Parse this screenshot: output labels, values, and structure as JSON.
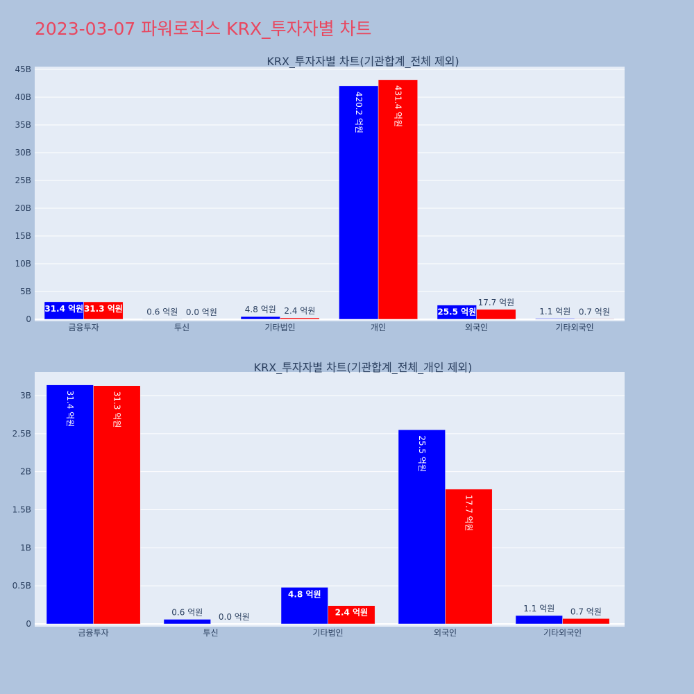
{
  "page": {
    "title": "2023-03-07 파워로직스 KRX_투자자별 차트"
  },
  "colors": {
    "background": "#b0c4de",
    "plot_bg": "#e5ecf6",
    "grid": "#ffffff",
    "series_a": "#0000ff",
    "series_b": "#ff0000",
    "title": "#e8475f",
    "text": "#2a3f5f"
  },
  "chart_data": [
    {
      "type": "bar",
      "title": "KRX_투자자별 차트(기관합계_전체 제외)",
      "categories": [
        "금융투자",
        "투신",
        "기타법인",
        "개인",
        "외국인",
        "기타외국인"
      ],
      "series": [
        {
          "values": [
            3140000000,
            60000000,
            480000000,
            42020000000,
            2550000000,
            110000000
          ],
          "labels": [
            "31.4 억원",
            "0.6 억원",
            "4.8 억원",
            "420.2 억원",
            "25.5 억원",
            "1.1 억원"
          ]
        },
        {
          "values": [
            3130000000,
            0,
            240000000,
            43140000000,
            1770000000,
            70000000
          ],
          "labels": [
            "31.3 억원",
            "0.0 억원",
            "2.4 억원",
            "431.4 억원",
            "17.7 억원",
            "0.7 억원"
          ]
        }
      ],
      "ylim": [
        0,
        45500000000
      ],
      "yticks": [
        0,
        5000000000,
        10000000000,
        15000000000,
        20000000000,
        25000000000,
        30000000000,
        35000000000,
        40000000000,
        45000000000
      ],
      "ytick_labels": [
        "0",
        "5B",
        "10B",
        "15B",
        "20B",
        "25B",
        "30B",
        "35B",
        "40B",
        "45B"
      ],
      "grid": true
    },
    {
      "type": "bar",
      "title": "KRX_투자자별 차트(기관합계_전체_개인 제외)",
      "categories": [
        "금융투자",
        "투신",
        "기타법인",
        "외국인",
        "기타외국인"
      ],
      "series": [
        {
          "values": [
            3140000000,
            60000000,
            480000000,
            2550000000,
            110000000
          ],
          "labels": [
            "31.4 억원",
            "0.6 억원",
            "4.8 억원",
            "25.5 억원",
            "1.1 억원"
          ]
        },
        {
          "values": [
            3130000000,
            0,
            240000000,
            1770000000,
            70000000
          ],
          "labels": [
            "31.3 억원",
            "0.0 억원",
            "2.4 억원",
            "17.7 억원",
            "0.7 억원"
          ]
        }
      ],
      "ylim": [
        0,
        3310000000
      ],
      "yticks": [
        0,
        500000000,
        1000000000,
        1500000000,
        2000000000,
        2500000000,
        3000000000
      ],
      "ytick_labels": [
        "0",
        "0.5B",
        "1B",
        "1.5B",
        "2B",
        "2.5B",
        "3B"
      ],
      "grid": true
    }
  ]
}
